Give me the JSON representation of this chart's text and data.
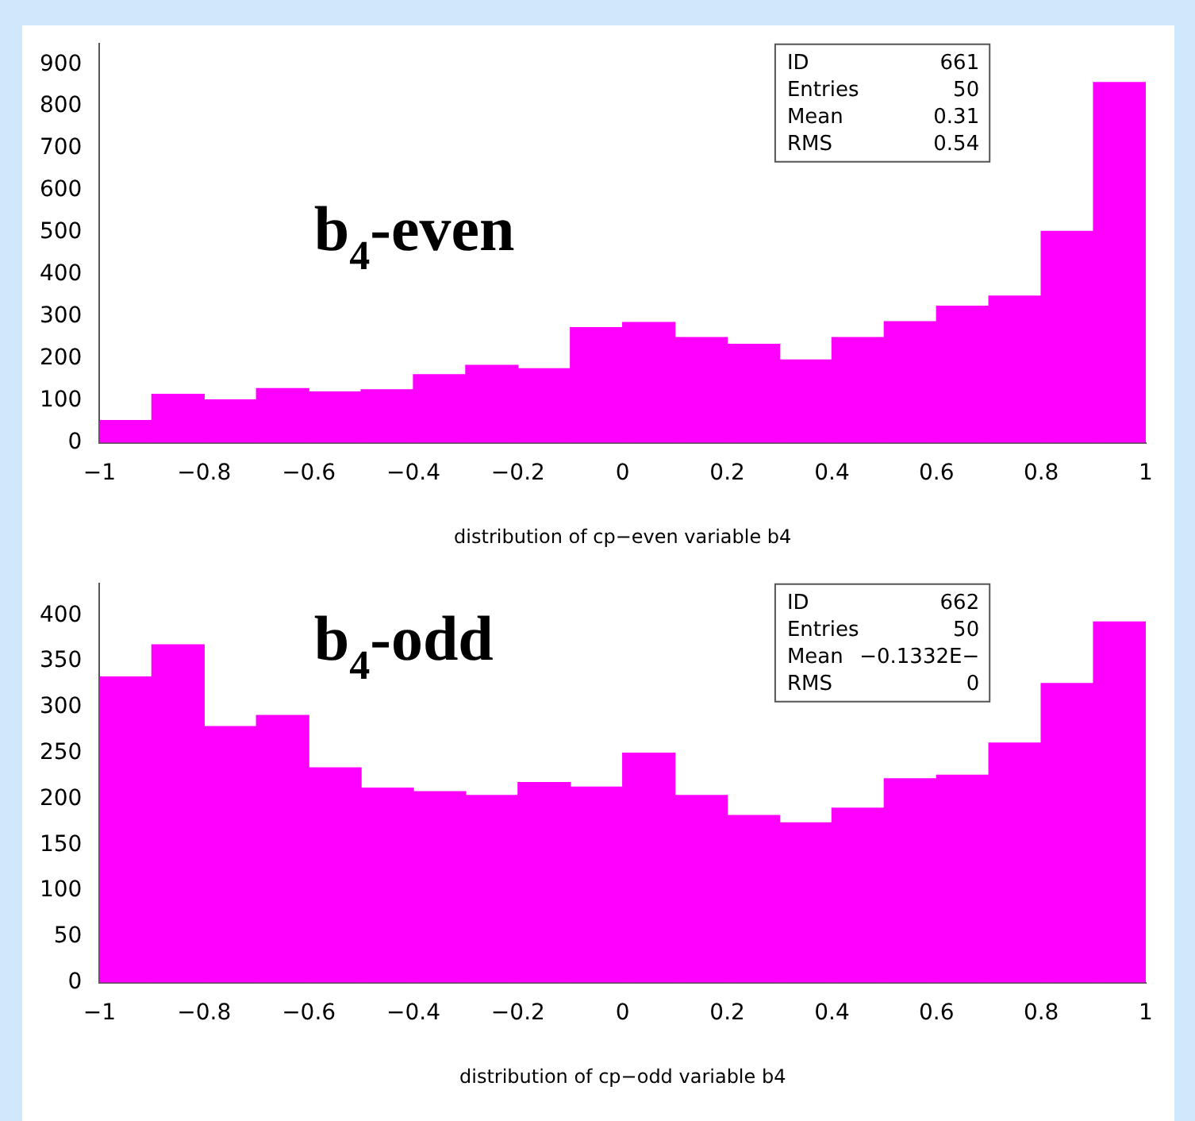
{
  "chart_data": [
    {
      "type": "histogram",
      "xlabel": "distribution of cp−even variable b4",
      "bins": [
        -1,
        -0.9,
        -0.8,
        -0.7,
        -0.6,
        -0.5,
        -0.4,
        -0.3,
        -0.2,
        -0.1,
        0,
        0.1,
        0.2,
        0.3,
        0.4,
        0.5,
        0.6,
        0.7,
        0.8,
        0.9,
        1
      ],
      "values": [
        53,
        115,
        102,
        129,
        121,
        126,
        162,
        184,
        176,
        274,
        286,
        250,
        234,
        197,
        250,
        288,
        325,
        349,
        503,
        857
      ],
      "color": "#ff00ff",
      "xlim": [
        -1,
        1
      ],
      "xticks": [
        {
          "value": -1,
          "label": "−1"
        },
        {
          "value": -0.8,
          "label": "−0.8"
        },
        {
          "value": -0.6,
          "label": "−0.6"
        },
        {
          "value": -0.4,
          "label": "−0.4"
        },
        {
          "value": -0.2,
          "label": "−0.2"
        },
        0,
        0.2,
        0.4,
        0.6,
        0.8,
        1
      ],
      "ylim": [
        0,
        950
      ],
      "yticks": [
        0,
        100,
        200,
        300,
        400,
        500,
        600,
        700,
        800,
        900
      ],
      "grid": false,
      "legend": false,
      "annotations": [
        "b$_{4}$-even",
        "ID 661",
        "Entries 50",
        "Mean 0.31",
        "RMS 0.54"
      ]
    },
    {
      "type": "histogram",
      "xlabel": "distribution of cp−odd variable b4",
      "bins": [
        -1,
        -0.9,
        -0.8,
        -0.7,
        -0.6,
        -0.5,
        -0.4,
        -0.3,
        -0.2,
        -0.1,
        0,
        0.1,
        0.2,
        0.3,
        0.4,
        0.5,
        0.6,
        0.7,
        0.8,
        0.9,
        1
      ],
      "values": [
        333,
        368,
        279,
        291,
        234,
        212,
        208,
        204,
        218,
        213,
        250,
        204,
        182,
        174,
        190,
        222,
        226,
        261,
        326,
        393
      ],
      "color": "#ff00ff",
      "xlim": [
        -1,
        1
      ],
      "xticks": [
        {
          "value": -1,
          "label": "−1"
        },
        {
          "value": -0.8,
          "label": "−0.8"
        },
        {
          "value": -0.6,
          "label": "−0.6"
        },
        {
          "value": -0.4,
          "label": "−0.4"
        },
        {
          "value": -0.2,
          "label": "−0.2"
        },
        0,
        0.2,
        0.4,
        0.6,
        0.8,
        1
      ],
      "ylim": [
        0,
        435
      ],
      "yticks": [
        0,
        50,
        100,
        150,
        200,
        250,
        300,
        350,
        400
      ],
      "grid": false,
      "legend": false,
      "annotations": [
        "b$_{4}$-odd",
        "ID 662",
        "Entries 50",
        "Mean −0.1332E−",
        "RMS 0"
      ]
    }
  ]
}
